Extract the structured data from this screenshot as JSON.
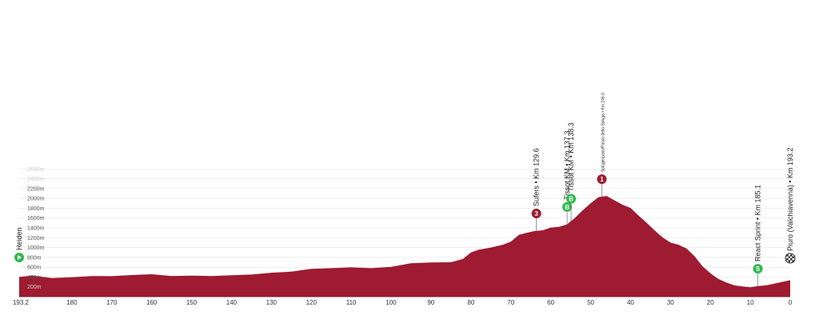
{
  "chart_data": {
    "type": "area",
    "title": "",
    "xlabel": "",
    "ylabel": "",
    "x_reversed": true,
    "xlim": [
      193.2,
      0
    ],
    "ylim": [
      0,
      2800
    ],
    "grid": true,
    "fill_color": "#9e1b32",
    "grid_color": "#e6e6e6",
    "x_ticks": [
      "193.2",
      "180",
      "170",
      "160",
      "150",
      "140",
      "130",
      "120",
      "110",
      "100",
      "90",
      "80",
      "70",
      "60",
      "50",
      "40",
      "30",
      "20",
      "10",
      "0"
    ],
    "y_ticks": [
      {
        "value": 200,
        "label": "200m",
        "faint": true
      },
      {
        "value": 400,
        "label": "400m",
        "faint": false
      },
      {
        "value": 600,
        "label": "600m",
        "faint": false
      },
      {
        "value": 800,
        "label": "800m",
        "faint": false
      },
      {
        "value": 1000,
        "label": "1000m",
        "faint": false
      },
      {
        "value": 1200,
        "label": "1200m",
        "faint": false
      },
      {
        "value": 1400,
        "label": "1400m",
        "faint": false
      },
      {
        "value": 1600,
        "label": "1600m",
        "faint": false
      },
      {
        "value": 1800,
        "label": "1800m",
        "faint": false
      },
      {
        "value": 2000,
        "label": "2000m",
        "faint": false
      },
      {
        "value": 2200,
        "label": "2200m",
        "faint": false
      },
      {
        "value": 2400,
        "label": "2400m",
        "faint": true
      },
      {
        "value": 2600,
        "label": "2600m",
        "faint": true
      }
    ],
    "series": [
      {
        "x": [
          193.2,
          190,
          185,
          180,
          175,
          170,
          165,
          160,
          155,
          150,
          145,
          140,
          135,
          130,
          125,
          120,
          115,
          110,
          105,
          100,
          95,
          90,
          85,
          82,
          80,
          78,
          75,
          72,
          70,
          68,
          66,
          64,
          62,
          60,
          58,
          56,
          54,
          52,
          50,
          48,
          46,
          44,
          42,
          40,
          38,
          36,
          34,
          32,
          30,
          28,
          26,
          24,
          22,
          20,
          18,
          16,
          14,
          12,
          10,
          8,
          6,
          4,
          2,
          0
        ],
        "y": [
          400,
          420,
          380,
          390,
          420,
          410,
          440,
          450,
          420,
          420,
          420,
          430,
          450,
          480,
          510,
          560,
          580,
          590,
          580,
          600,
          680,
          690,
          700,
          760,
          900,
          950,
          1000,
          1050,
          1120,
          1250,
          1300,
          1330,
          1350,
          1400,
          1420,
          1460,
          1600,
          1750,
          1900,
          2020,
          2050,
          1950,
          1870,
          1800,
          1650,
          1500,
          1350,
          1200,
          1100,
          1050,
          980,
          820,
          620,
          470,
          360,
          280,
          230,
          200,
          190,
          210,
          230,
          260,
          300,
          330
        ]
      }
    ],
    "markers": [
      {
        "km": 193.2,
        "label": "Heiden",
        "badge": "",
        "kind": "start",
        "color": "#2fb84d"
      },
      {
        "km": 63.6,
        "label": "Sufers • Km 129.6",
        "badge": "3",
        "kind": "climb",
        "color": "#9e1b32"
      },
      {
        "km": 55.9,
        "label": "Tissot KM • Km 137.3",
        "badge": "B",
        "kind": "bonus",
        "color": "#2fb84d"
      },
      {
        "km": 54.9,
        "label": "Tissot KM • Km 138.3",
        "badge": "B",
        "kind": "bonus",
        "color": "#2fb84d"
      },
      {
        "km": 47.2,
        "label": "Splügenpass/Passo dello Spluga • Km 146.0",
        "badge": "1",
        "kind": "climb",
        "color": "#9e1b32"
      },
      {
        "km": 8.1,
        "label": "React Sprint • Km 185.1",
        "badge": "S",
        "kind": "sprint",
        "color": "#2fb84d"
      },
      {
        "km": 0,
        "label": "Piuro (Valchiavenna) • Km 193.2",
        "badge": "",
        "kind": "finish",
        "color": "#222222"
      }
    ]
  }
}
